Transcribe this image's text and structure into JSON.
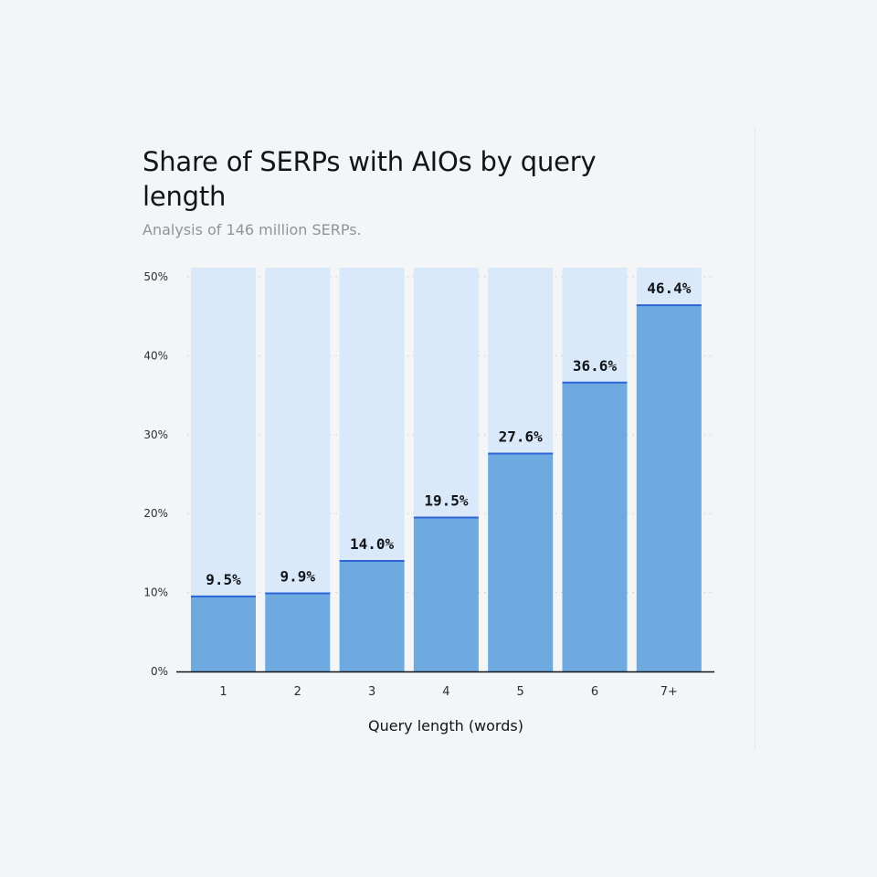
{
  "chart_data": {
    "type": "bar",
    "title": "Share of SERPs with AIOs by query length",
    "subtitle": "Analysis of 146 million SERPs.",
    "xlabel": "Query length (words)",
    "ylabel": "",
    "categories": [
      "1",
      "2",
      "3",
      "4",
      "5",
      "6",
      "7+"
    ],
    "values": [
      9.5,
      9.9,
      14.0,
      19.5,
      27.6,
      36.6,
      46.4
    ],
    "value_labels": [
      "9.5%",
      "9.9%",
      "14.0%",
      "19.5%",
      "27.6%",
      "36.6%",
      "46.4%"
    ],
    "ylim": [
      0,
      50
    ],
    "yticks": [
      0,
      10,
      20,
      30,
      40,
      50
    ],
    "ytick_labels": [
      "0%",
      "10%",
      "20%",
      "30%",
      "40%",
      "50%"
    ],
    "grid": true,
    "legend": "none",
    "colors": {
      "bar": "#6eaae0",
      "bar_top_line": "#2a64d6",
      "background_bar": "#d9e9f9",
      "grid": "#c9ccd2",
      "axis": "#111418"
    }
  }
}
